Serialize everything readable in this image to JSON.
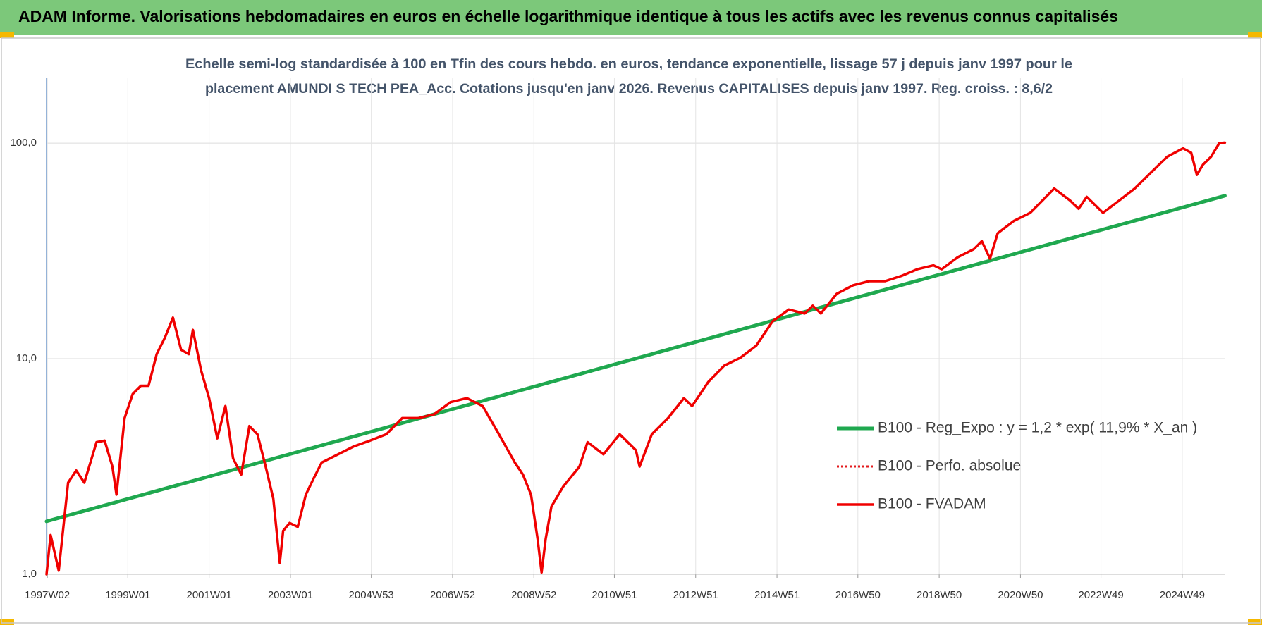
{
  "chart_data": {
    "type": "line",
    "title": "ADAM Informe. Valorisations hebdomadaires en euros en échelle logarithmique identique à tous les actifs avec les revenus connus capitalisés",
    "subtitle": [
      "Echelle semi-log standardisée à 100 en Tfin des cours hebdo. en euros, tendance exponentielle, lissage 57 j depuis janv 1997 pour le",
      "placement AMUNDI S TECH PEA_Acc. Cotations jusqu'en janv 2026. Revenus CAPITALISES depuis janv 1997. Reg. croiss. : 8,6/2"
    ],
    "log_scale": true,
    "grid": true,
    "legend_position": "right",
    "xlim": [
      1997.0,
      2026.0
    ],
    "xticks": [
      {
        "value": 1997.02,
        "label": "1997W02"
      },
      {
        "value": 1999.0,
        "label": "1999W01"
      },
      {
        "value": 2001.0,
        "label": "2001W01"
      },
      {
        "value": 2003.0,
        "label": "2003W01"
      },
      {
        "value": 2004.99,
        "label": "2004W53"
      },
      {
        "value": 2006.99,
        "label": "2006W52"
      },
      {
        "value": 2008.99,
        "label": "2008W52"
      },
      {
        "value": 2010.97,
        "label": "2010W51"
      },
      {
        "value": 2012.97,
        "label": "2012W51"
      },
      {
        "value": 2014.97,
        "label": "2014W51"
      },
      {
        "value": 2016.96,
        "label": "2016W50"
      },
      {
        "value": 2018.96,
        "label": "2018W50"
      },
      {
        "value": 2020.96,
        "label": "2020W50"
      },
      {
        "value": 2022.94,
        "label": "2022W49"
      },
      {
        "value": 2024.94,
        "label": "2024W49"
      }
    ],
    "ylim": [
      1,
      200
    ],
    "yticks": [
      {
        "value": 1,
        "label": "1,0"
      },
      {
        "value": 10,
        "label": "10,0"
      },
      {
        "value": 100,
        "label": "100,0"
      }
    ],
    "series": [
      {
        "name": "B100 - Reg_Expo : y = 1,2 * exp( 11,9% *  X_an )",
        "color": "#1fa84f",
        "width": 5,
        "dash": "solid",
        "x": [
          1997.0,
          2025.99
        ],
        "values": [
          1.76,
          57.0
        ]
      },
      {
        "name": "B100 - Perfo. absolue",
        "color": "#e31a1c",
        "width": 3,
        "dash": "dotted",
        "x": [],
        "values": []
      },
      {
        "name": "B100 - FVADAM",
        "color": "#f00000",
        "width": 3.5,
        "dash": "solid",
        "x": [
          1997.0,
          1997.1,
          1997.3,
          1997.53,
          1997.73,
          1997.93,
          1998.23,
          1998.43,
          1998.62,
          1998.72,
          1998.92,
          1999.12,
          1999.32,
          1999.51,
          1999.71,
          1999.91,
          2000.11,
          2000.31,
          2000.5,
          2000.6,
          2000.8,
          2001.0,
          2001.2,
          2001.4,
          2001.59,
          2001.79,
          2001.99,
          2002.19,
          2002.39,
          2002.58,
          2002.74,
          2002.82,
          2002.98,
          2003.18,
          2003.38,
          2003.57,
          2003.77,
          2004.17,
          2004.56,
          2004.96,
          2005.36,
          2005.75,
          2006.15,
          2006.54,
          2006.94,
          2007.34,
          2007.73,
          2008.13,
          2008.52,
          2008.72,
          2008.92,
          2009.08,
          2009.18,
          2009.28,
          2009.42,
          2009.71,
          2010.11,
          2010.31,
          2010.7,
          2011.1,
          2011.5,
          2011.59,
          2011.89,
          2012.29,
          2012.68,
          2012.88,
          2013.28,
          2013.67,
          2014.07,
          2014.46,
          2014.86,
          2015.26,
          2015.65,
          2015.85,
          2016.05,
          2016.44,
          2016.84,
          2017.24,
          2017.63,
          2018.03,
          2018.42,
          2018.82,
          2019.02,
          2019.42,
          2019.81,
          2020.01,
          2020.21,
          2020.4,
          2020.8,
          2021.2,
          2021.59,
          2021.79,
          2022.19,
          2022.39,
          2022.59,
          2022.99,
          2023.38,
          2023.77,
          2024.17,
          2024.57,
          2024.96,
          2025.16,
          2025.3,
          2025.45,
          2025.65,
          2025.85,
          2025.99
        ],
        "values": [
          1.0,
          1.52,
          1.04,
          2.66,
          3.03,
          2.66,
          4.1,
          4.17,
          3.16,
          2.34,
          5.3,
          6.86,
          7.49,
          7.49,
          10.5,
          12.5,
          15.5,
          11.0,
          10.5,
          13.6,
          8.86,
          6.56,
          4.27,
          6.03,
          3.45,
          2.9,
          4.87,
          4.46,
          3.16,
          2.24,
          1.13,
          1.59,
          1.73,
          1.66,
          2.34,
          2.78,
          3.3,
          3.6,
          3.92,
          4.17,
          4.46,
          5.3,
          5.3,
          5.53,
          6.29,
          6.56,
          6.03,
          4.46,
          3.3,
          2.9,
          2.34,
          1.46,
          1.02,
          1.46,
          2.06,
          2.55,
          3.16,
          4.1,
          3.6,
          4.46,
          3.76,
          3.16,
          4.46,
          5.3,
          6.56,
          6.03,
          7.8,
          9.28,
          10.1,
          11.5,
          14.9,
          16.9,
          16.2,
          17.6,
          16.2,
          20.0,
          21.9,
          22.9,
          22.9,
          24.2,
          26.0,
          27.1,
          26.0,
          29.6,
          32.2,
          35.1,
          29.1,
          38.2,
          43.6,
          47.5,
          56.3,
          61.6,
          54.0,
          49.6,
          56.3,
          47.5,
          54.0,
          61.6,
          73.0,
          86.5,
          94.6,
          90.2,
          71.2,
          79.5,
          86.5,
          100,
          100.5
        ]
      }
    ]
  }
}
